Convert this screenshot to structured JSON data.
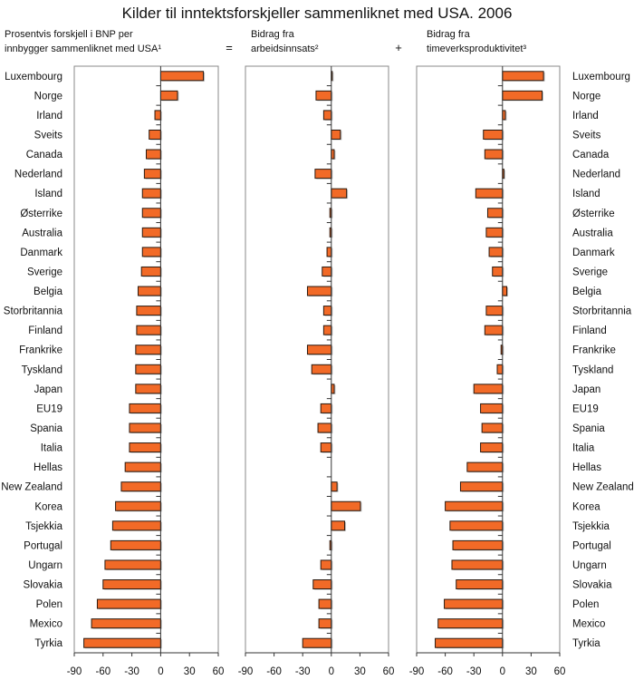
{
  "title": "Kilder til inntektsforskjeller sammenliknet med USA. 2006",
  "operators": {
    "equals": "=",
    "plus": "+"
  },
  "colors": {
    "bar": "#F26A27",
    "bar_border": "#2a1a10",
    "shadow": "#9a9a9a",
    "axis": "#333333"
  },
  "chart_data": [
    {
      "type": "bar",
      "orientation": "horizontal",
      "subtitle_lines": [
        "Prosentvis forskjell i BNP per",
        "innbygger sammenliknet med USA¹"
      ],
      "xlim": [
        -90,
        60
      ],
      "xticks": [
        "-90",
        "-60",
        "-30",
        "0",
        "30",
        "60"
      ],
      "grid": false,
      "categories": [
        "Luxembourg",
        "Norge",
        "Irland",
        "Sveits",
        "Canada",
        "Nederland",
        "Island",
        "Østerrike",
        "Australia",
        "Danmark",
        "Sverige",
        "Belgia",
        "Storbritannia",
        "Finland",
        "Frankrike",
        "Tyskland",
        "Japan",
        "EU19",
        "Spania",
        "Italia",
        "Hellas",
        "New Zealand",
        "Korea",
        "Tsjekkia",
        "Portugal",
        "Ungarn",
        "Slovakia",
        "Polen",
        "Mexico",
        "Tyrkia"
      ],
      "values": [
        44.5,
        17.5,
        -6,
        -12,
        -15,
        -17,
        -19,
        -19,
        -19,
        -19,
        -20,
        -23.5,
        -25,
        -25,
        -26,
        -26,
        -26,
        -32.5,
        -32.5,
        -32.5,
        -37,
        -41,
        -47,
        -50,
        -52,
        -58,
        -60,
        -66,
        -72,
        -80
      ]
    },
    {
      "type": "bar",
      "orientation": "horizontal",
      "subtitle_lines": [
        "Bidrag fra",
        "arbeidsinnsats²"
      ],
      "xlim": [
        -90,
        60
      ],
      "xticks": [
        "-90",
        "-60",
        "-30",
        "0",
        "30",
        "60"
      ],
      "grid": false,
      "categories": [
        "Luxembourg",
        "Norge",
        "Irland",
        "Sveits",
        "Canada",
        "Nederland",
        "Island",
        "Østerrike",
        "Australia",
        "Danmark",
        "Sverige",
        "Belgia",
        "Storbritannia",
        "Finland",
        "Frankrike",
        "Tyskland",
        "Japan",
        "EU19",
        "Spania",
        "Italia",
        "Hellas",
        "New Zealand",
        "Korea",
        "Tsjekkia",
        "Portugal",
        "Ungarn",
        "Slovakia",
        "Polen",
        "Mexico",
        "Tyrkia"
      ],
      "values": [
        1,
        -16,
        -8,
        9.5,
        3,
        -17,
        16,
        -1.5,
        -1.5,
        -4.5,
        -9.5,
        -25,
        -8,
        -8,
        -25,
        -20.5,
        3,
        -11,
        -14,
        -11,
        0,
        6,
        30.5,
        14,
        -1.5,
        -11,
        -19,
        -13,
        -13,
        -30
      ]
    },
    {
      "type": "bar",
      "orientation": "horizontal",
      "subtitle_lines": [
        "Bidrag fra",
        "timeverksproduktivitet³"
      ],
      "xlim": [
        -90,
        60
      ],
      "xticks": [
        "-90",
        "-60",
        "-30",
        "0",
        "30",
        "60"
      ],
      "grid": false,
      "categories": [
        "Luxembourg",
        "Norge",
        "Irland",
        "Sveits",
        "Canada",
        "Nederland",
        "Island",
        "Østerrike",
        "Australia",
        "Danmark",
        "Sverige",
        "Belgia",
        "Storbritannia",
        "Finland",
        "Frankrike",
        "Tyskland",
        "Japan",
        "EU19",
        "Spania",
        "Italia",
        "Hellas",
        "New Zealand",
        "Korea",
        "Tsjekkia",
        "Portugal",
        "Ungarn",
        "Slovakia",
        "Polen",
        "Mexico",
        "Tyrkia"
      ],
      "values": [
        43,
        41.5,
        3,
        -20,
        -18.5,
        1.5,
        -28,
        -15.5,
        -17,
        -14,
        -10.5,
        4.5,
        -17,
        -18.5,
        -1.5,
        -5.5,
        -30,
        -23,
        -21.5,
        -23,
        -37,
        -44,
        -60,
        -55,
        -52,
        -53,
        -48.5,
        -61,
        -67.5,
        -70.5
      ]
    }
  ]
}
